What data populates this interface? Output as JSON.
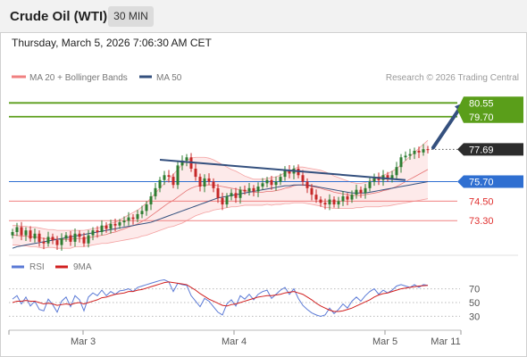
{
  "header": {
    "instrument": "Crude Oil (WTI)",
    "timeframe": "30 MIN",
    "datetime": "Thursday, March 5, 2026 7:06:30 AM CET"
  },
  "legend": {
    "ma20_bb": "MA 20 + Bollinger Bands",
    "ma50": "MA 50",
    "copyright": "Research © 2026 Trading Central"
  },
  "rsi_legend": {
    "rsi": "RSI",
    "ma9": "9MA"
  },
  "colors": {
    "up": "#2e7d32",
    "down": "#c62828",
    "target_line": "#5a9e1a",
    "pivot_line": "#2f6fd1",
    "support_line": "#f08080",
    "support_text": "#e0302f",
    "ma20_band": "#f4a0a0",
    "ma50": "#34507e",
    "trendline": "#34507e",
    "rsi": "#5b7ad6",
    "rsi_ma": "#d11f1f",
    "current_label": "#2c2c2c"
  },
  "chart_data": {
    "type": "candlestick",
    "ylim": [
      71.5,
      81.5
    ],
    "x_tick_labels": [
      "Mar 3",
      "Mar 4",
      "Mar 5",
      "Mar 11"
    ],
    "levels": [
      {
        "name": "target-2",
        "value": 80.55,
        "label": "80.55",
        "role": "target"
      },
      {
        "name": "target-1",
        "value": 79.7,
        "label": "79.70",
        "role": "target"
      },
      {
        "name": "last",
        "value": 77.69,
        "label": "77.69",
        "role": "current"
      },
      {
        "name": "pivot",
        "value": 75.7,
        "label": "75.70",
        "role": "pivot"
      },
      {
        "name": "support-1",
        "value": 74.5,
        "label": "74.50",
        "role": "support"
      },
      {
        "name": "support-2",
        "value": 73.3,
        "label": "73.30",
        "role": "support"
      }
    ],
    "closes": [
      72.6,
      72.9,
      72.4,
      72.7,
      72.2,
      72.5,
      72.0,
      71.9,
      72.3,
      72.1,
      71.8,
      72.2,
      72.4,
      72.0,
      72.5,
      72.3,
      71.9,
      72.4,
      72.7,
      72.6,
      73.0,
      72.8,
      73.1,
      73.0,
      73.2,
      73.3,
      73.5,
      73.4,
      73.7,
      73.9,
      74.3,
      74.8,
      75.3,
      75.8,
      76.1,
      76.0,
      75.5,
      76.7,
      77.0,
      77.2,
      76.5,
      76.0,
      75.4,
      75.9,
      75.7,
      75.3,
      74.7,
      74.3,
      74.8,
      75.0,
      74.7,
      75.2,
      75.1,
      75.3,
      75.1,
      75.4,
      75.6,
      75.8,
      75.5,
      75.7,
      76.0,
      76.4,
      76.2,
      76.5,
      76.1,
      75.7,
      75.3,
      74.9,
      74.6,
      74.4,
      74.3,
      74.6,
      74.3,
      74.5,
      74.8,
      74.6,
      74.9,
      75.2,
      75.0,
      75.3,
      75.7,
      76.0,
      75.8,
      76.1,
      75.9,
      76.1,
      76.6,
      77.2,
      77.3,
      77.4,
      77.6,
      77.5,
      77.7,
      77.69
    ],
    "ma20_mid": [
      72.4,
      72.4,
      72.35,
      72.35,
      72.3,
      72.3,
      72.25,
      72.2,
      72.2,
      72.2,
      72.15,
      72.15,
      72.15,
      72.15,
      72.2,
      72.2,
      72.2,
      72.25,
      72.3,
      72.35,
      72.4,
      72.45,
      72.55,
      72.6,
      72.7,
      72.8,
      72.9,
      73.0,
      73.1,
      73.25,
      73.4,
      73.6,
      73.8,
      74.0,
      74.2,
      74.4,
      74.55,
      74.75,
      74.95,
      75.15,
      75.3,
      75.4,
      75.45,
      75.5,
      75.5,
      75.5,
      75.45,
      75.4,
      75.35,
      75.3,
      75.25,
      75.2,
      75.15,
      75.1,
      75.05,
      75.05,
      75.05,
      75.1,
      75.1,
      75.15,
      75.2,
      75.3,
      75.35,
      75.45,
      75.5,
      75.5,
      75.45,
      75.4,
      75.35,
      75.3,
      75.2,
      75.15,
      75.05,
      75.0,
      74.95,
      74.9,
      74.85,
      74.85,
      74.85,
      74.9,
      74.95,
      75.0,
      75.05,
      75.15,
      75.2,
      75.3,
      75.4,
      75.55,
      75.7,
      75.85,
      76.0,
      76.15,
      76.3,
      76.45
    ],
    "bb_halfwidth": [
      0.6,
      0.6,
      0.6,
      0.6,
      0.6,
      0.6,
      0.6,
      0.6,
      0.55,
      0.55,
      0.55,
      0.55,
      0.55,
      0.55,
      0.5,
      0.5,
      0.5,
      0.5,
      0.5,
      0.5,
      0.5,
      0.55,
      0.6,
      0.6,
      0.65,
      0.7,
      0.75,
      0.8,
      0.85,
      0.9,
      1.0,
      1.1,
      1.2,
      1.3,
      1.4,
      1.5,
      1.6,
      1.7,
      1.8,
      1.85,
      1.85,
      1.8,
      1.75,
      1.7,
      1.65,
      1.55,
      1.45,
      1.35,
      1.25,
      1.15,
      1.1,
      1.0,
      0.9,
      0.85,
      0.8,
      0.8,
      0.8,
      0.8,
      0.85,
      0.85,
      0.9,
      0.95,
      1.0,
      1.05,
      1.1,
      1.1,
      1.1,
      1.1,
      1.1,
      1.1,
      1.1,
      1.05,
      1.0,
      0.95,
      0.9,
      0.85,
      0.8,
      0.75,
      0.75,
      0.75,
      0.8,
      0.85,
      0.9,
      0.95,
      1.0,
      1.05,
      1.1,
      1.2,
      1.3,
      1.4,
      1.5,
      1.6,
      1.7,
      1.8
    ],
    "ma50": [
      71.6,
      71.7,
      71.75,
      71.8,
      71.85,
      71.9,
      71.95,
      72.0,
      72.05,
      72.1,
      72.15,
      72.2,
      72.25,
      72.3,
      72.35,
      72.4,
      72.45,
      72.5,
      72.55,
      72.6,
      72.65,
      72.7,
      72.75,
      72.8,
      72.85,
      72.9,
      72.95,
      73.0,
      73.05,
      73.1,
      73.15,
      73.2,
      73.3,
      73.4,
      73.5,
      73.6,
      73.7,
      73.8,
      73.9,
      74.0,
      74.1,
      74.2,
      74.3,
      74.4,
      74.5,
      74.6,
      74.7,
      74.75,
      74.8,
      74.85,
      74.9,
      74.95,
      75.0,
      75.05,
      75.1,
      75.15,
      75.2,
      75.25,
      75.3,
      75.35,
      75.4,
      75.45,
      75.45,
      75.5,
      75.5,
      75.5,
      75.5,
      75.45,
      75.4,
      75.35,
      75.3,
      75.25,
      75.2,
      75.15,
      75.1,
      75.05,
      75.0,
      75.0,
      75.0,
      75.0,
      75.05,
      75.1,
      75.15,
      75.2,
      75.25,
      75.3,
      75.35,
      75.4,
      75.45,
      75.5,
      75.55,
      75.6,
      75.65,
      75.7
    ],
    "trendline": [
      [
        33,
        77.05
      ],
      [
        88,
        75.8
      ]
    ],
    "projection": {
      "from": [
        93,
        77.69
      ],
      "to": [
        101,
        80.55
      ]
    },
    "rsi_ylim": [
      15,
      85
    ],
    "rsi_ticks": [
      70,
      50,
      30
    ],
    "rsi": [
      55,
      60,
      48,
      58,
      45,
      52,
      40,
      38,
      55,
      47,
      36,
      52,
      58,
      44,
      60,
      54,
      38,
      58,
      64,
      60,
      68,
      60,
      66,
      62,
      67,
      68,
      70,
      66,
      72,
      74,
      76,
      78,
      80,
      82,
      83,
      80,
      66,
      78,
      76,
      75,
      60,
      52,
      44,
      56,
      52,
      44,
      36,
      32,
      48,
      54,
      45,
      60,
      55,
      62,
      54,
      62,
      66,
      68,
      56,
      62,
      68,
      72,
      62,
      70,
      56,
      46,
      40,
      35,
      32,
      30,
      32,
      42,
      34,
      40,
      48,
      42,
      52,
      58,
      52,
      60,
      66,
      70,
      62,
      68,
      64,
      68,
      74,
      76,
      74,
      72,
      76,
      72,
      76,
      75
    ],
    "rsi_ma": [
      50,
      52,
      52,
      53,
      52,
      52,
      50,
      48,
      49,
      48,
      46,
      47,
      48,
      47,
      49,
      50,
      48,
      50,
      52,
      54,
      57,
      58,
      60,
      62,
      63,
      64,
      66,
      66,
      68,
      69,
      71,
      73,
      75,
      77,
      79,
      80,
      79,
      78,
      77,
      76,
      72,
      68,
      63,
      59,
      55,
      52,
      49,
      46,
      45,
      47,
      48,
      50,
      52,
      54,
      56,
      58,
      59,
      60,
      60,
      61,
      62,
      64,
      65,
      66,
      64,
      62,
      58,
      54,
      49,
      45,
      42,
      39,
      37,
      37,
      38,
      40,
      42,
      45,
      48,
      51,
      54,
      58,
      61,
      63,
      64,
      66,
      68,
      70,
      71,
      72,
      73,
      74,
      74.5,
      75
    ]
  }
}
